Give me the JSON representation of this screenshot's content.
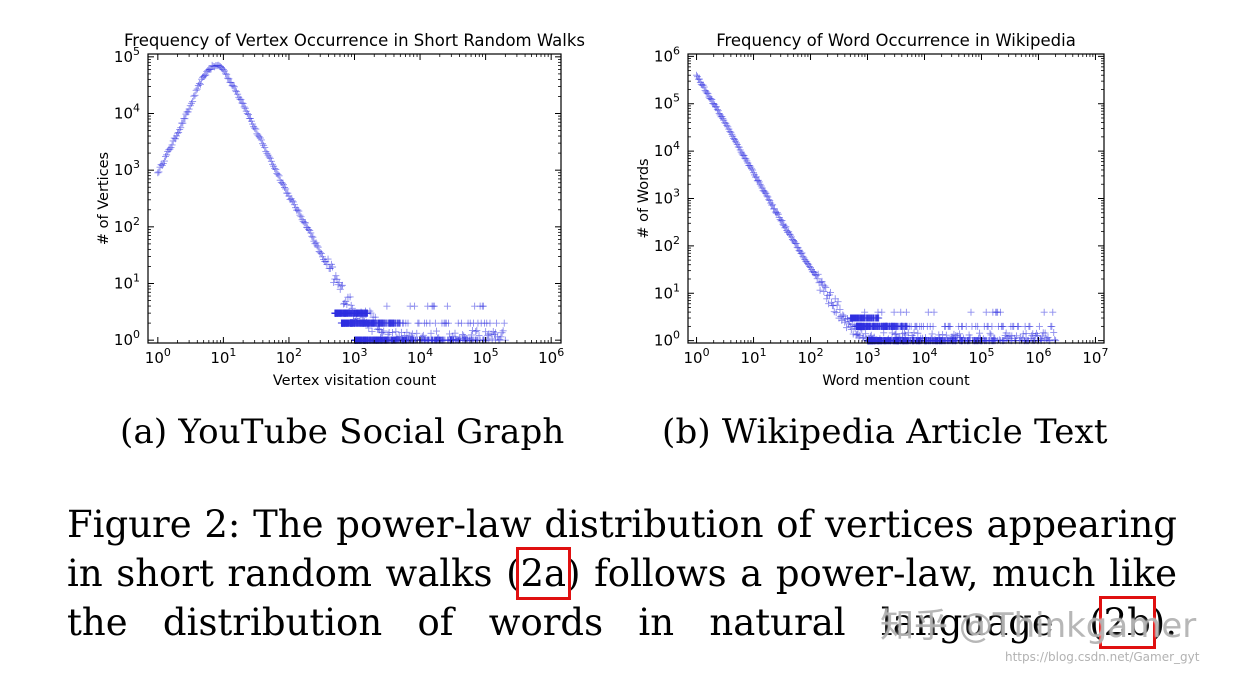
{
  "chart_data": [
    {
      "type": "scatter",
      "title": "Frequency of Vertex Occurrence in Short Random Walks",
      "xlabel": "Vertex visitation count",
      "ylabel": "# of Vertices",
      "xscale": "log",
      "yscale": "log",
      "xlim": [
        1,
        1000000
      ],
      "ylim": [
        1,
        100000
      ],
      "xticks": [
        "10^0",
        "10^1",
        "10^2",
        "10^3",
        "10^4",
        "10^5",
        "10^6"
      ],
      "yticks": [
        "10^0",
        "10^1",
        "10^2",
        "10^3",
        "10^4",
        "10^5"
      ],
      "marker": "+",
      "color": "#3030e0",
      "series": [
        {
          "x": [
            1,
            2,
            3,
            4,
            5,
            6,
            7,
            8,
            9,
            10,
            20,
            30,
            50,
            100,
            200,
            300,
            500,
            1000,
            2000,
            3000,
            5000,
            10000,
            20000,
            50000,
            200000
          ],
          "y": [
            900,
            4500,
            12000,
            27000,
            45000,
            60000,
            68000,
            70000,
            67000,
            60000,
            15000,
            5500,
            1700,
            350,
            90,
            35,
            12,
            3,
            2,
            1,
            1,
            1,
            1,
            1,
            1
          ]
        }
      ]
    },
    {
      "type": "scatter",
      "title": "Frequency of Word Occurrence in Wikipedia",
      "xlabel": "Word mention count",
      "ylabel": "# of Words",
      "xscale": "log",
      "yscale": "log",
      "xlim": [
        1,
        10000000
      ],
      "ylim": [
        1,
        1000000
      ],
      "xticks": [
        "10^0",
        "10^1",
        "10^2",
        "10^3",
        "10^4",
        "10^5",
        "10^6",
        "10^7"
      ],
      "yticks": [
        "10^0",
        "10^1",
        "10^2",
        "10^3",
        "10^4",
        "10^5",
        "10^6"
      ],
      "marker": "+",
      "color": "#3030e0",
      "series": [
        {
          "x": [
            1,
            2,
            3,
            4,
            5,
            10,
            20,
            50,
            100,
            200,
            500,
            1000,
            2000,
            5000,
            10000,
            20000,
            50000,
            100000,
            500000,
            1000000,
            2000000
          ],
          "y": [
            400000,
            100000,
            45000,
            25000,
            15000,
            3500,
            800,
            130,
            35,
            9,
            2,
            1,
            1,
            1,
            1,
            1,
            1,
            1,
            1,
            1,
            1
          ]
        }
      ]
    }
  ],
  "subcaptions": {
    "a": "(a) YouTube Social Graph",
    "b": "(b) Wikipedia Article Text"
  },
  "caption": {
    "line1": "Figure 2: The power-law distribution of vertices appearing",
    "line2_before": "in short random walks (",
    "line2_ref": "2a",
    "line2_after": ") follows a power-law, much like",
    "line3_before": "the distribution of words in natural language (",
    "line3_ref": "2b",
    "line3_after": ")."
  },
  "watermark": {
    "text": "知乎 @Thinkgamer",
    "url": "https://blog.csdn.net/Gamer_gyt"
  }
}
